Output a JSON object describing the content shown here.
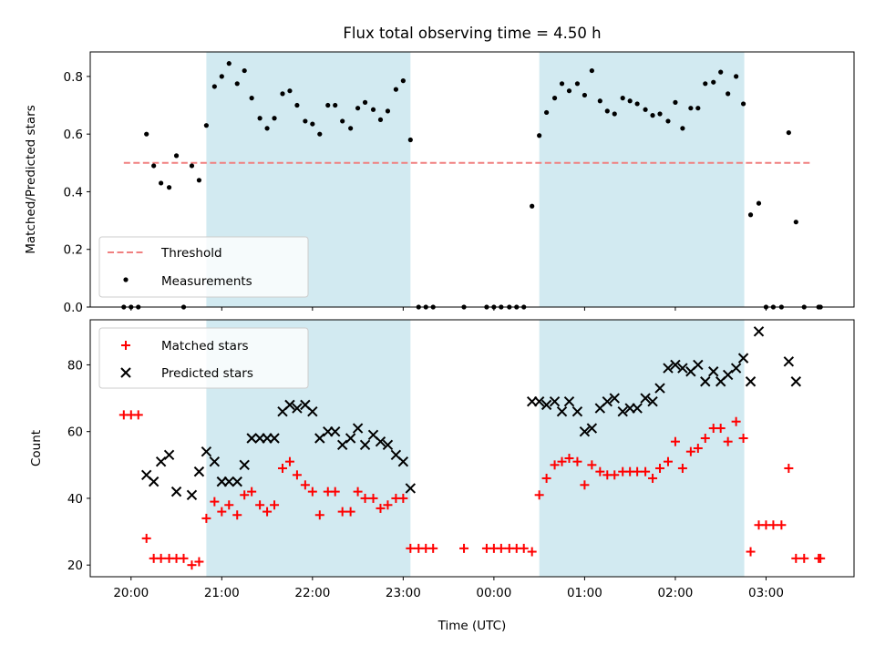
{
  "chart_data": [
    {
      "type": "scatter",
      "title": "Flux total observing time = 4.50 h",
      "ylabel": "Matched/Predicted stars",
      "xlabel": "",
      "ylim": [
        0,
        0.885
      ],
      "yticks": [
        "0.0",
        "0.2",
        "0.4",
        "0.6",
        "0.8"
      ],
      "ytick_values": [
        0,
        0.2,
        0.4,
        0.6,
        0.8
      ],
      "xlim": [
        -0.45,
        7.97
      ],
      "shaded_spans": [
        [
          0.83,
          3.08
        ],
        [
          4.5,
          6.76
        ]
      ],
      "shade_color": "#add8e6",
      "threshold": {
        "name": "Threshold",
        "value": 0.5,
        "x_range": [
          -0.08,
          7.5
        ],
        "color": "#f08080"
      },
      "legend": {
        "placement": "lower left",
        "entries": [
          "Threshold",
          "Measurements"
        ]
      },
      "series": [
        {
          "name": "Measurements",
          "color": "#000000",
          "points": [
            [
              -0.08,
              0
            ],
            [
              0,
              0
            ],
            [
              0.08,
              0
            ],
            [
              0.17,
              0.6
            ],
            [
              0.25,
              0.49
            ],
            [
              0.33,
              0.43
            ],
            [
              0.42,
              0.415
            ],
            [
              0.5,
              0.525
            ],
            [
              0.58,
              0.0
            ],
            [
              0.67,
              0.49
            ],
            [
              0.75,
              0.44
            ],
            [
              0.83,
              0.63
            ],
            [
              0.92,
              0.765
            ],
            [
              1,
              0.8
            ],
            [
              1.08,
              0.845
            ],
            [
              1.17,
              0.775
            ],
            [
              1.25,
              0.82
            ],
            [
              1.33,
              0.725
            ],
            [
              1.42,
              0.655
            ],
            [
              1.5,
              0.62
            ],
            [
              1.58,
              0.655
            ],
            [
              1.67,
              0.74
            ],
            [
              1.75,
              0.75
            ],
            [
              1.83,
              0.7
            ],
            [
              1.92,
              0.645
            ],
            [
              2,
              0.635
            ],
            [
              2.08,
              0.6
            ],
            [
              2.17,
              0.7
            ],
            [
              2.25,
              0.7
            ],
            [
              2.33,
              0.645
            ],
            [
              2.42,
              0.62
            ],
            [
              2.5,
              0.69
            ],
            [
              2.58,
              0.71
            ],
            [
              2.67,
              0.685
            ],
            [
              2.75,
              0.65
            ],
            [
              2.83,
              0.68
            ],
            [
              2.92,
              0.755
            ],
            [
              3,
              0.785
            ],
            [
              3.08,
              0.58
            ],
            [
              3.17,
              0
            ],
            [
              3.25,
              0
            ],
            [
              3.33,
              0
            ],
            [
              3.67,
              0
            ],
            [
              3.92,
              0
            ],
            [
              4,
              0
            ],
            [
              4.08,
              0
            ],
            [
              4.17,
              0
            ],
            [
              4.25,
              0
            ],
            [
              4.33,
              0
            ],
            [
              4.42,
              0.35
            ],
            [
              4.5,
              0.595
            ],
            [
              4.58,
              0.675
            ],
            [
              4.67,
              0.725
            ],
            [
              4.75,
              0.775
            ],
            [
              4.83,
              0.75
            ],
            [
              4.92,
              0.775
            ],
            [
              5,
              0.735
            ],
            [
              5.08,
              0.82
            ],
            [
              5.17,
              0.715
            ],
            [
              5.25,
              0.68
            ],
            [
              5.33,
              0.67
            ],
            [
              5.42,
              0.725
            ],
            [
              5.5,
              0.715
            ],
            [
              5.58,
              0.705
            ],
            [
              5.67,
              0.685
            ],
            [
              5.75,
              0.665
            ],
            [
              5.83,
              0.67
            ],
            [
              5.92,
              0.645
            ],
            [
              6,
              0.71
            ],
            [
              6.08,
              0.62
            ],
            [
              6.17,
              0.69
            ],
            [
              6.25,
              0.69
            ],
            [
              6.33,
              0.775
            ],
            [
              6.42,
              0.78
            ],
            [
              6.5,
              0.815
            ],
            [
              6.58,
              0.74
            ],
            [
              6.67,
              0.8
            ],
            [
              6.75,
              0.705
            ],
            [
              6.83,
              0.32
            ],
            [
              6.92,
              0.36
            ],
            [
              7,
              0
            ],
            [
              7.08,
              0
            ],
            [
              7.17,
              0
            ],
            [
              7.25,
              0.605
            ],
            [
              7.33,
              0.295
            ],
            [
              7.42,
              0
            ],
            [
              7.58,
              0
            ],
            [
              7.6,
              0
            ]
          ]
        }
      ]
    },
    {
      "type": "scatter",
      "title": "",
      "xlabel": "Time (UTC)",
      "ylabel": "Count",
      "ylim": [
        16.5,
        93.5
      ],
      "yticks": [
        "20",
        "40",
        "60",
        "80"
      ],
      "ytick_values": [
        20,
        40,
        60,
        80
      ],
      "xlim": [
        -0.45,
        7.97
      ],
      "xticks": [
        "20:00",
        "21:00",
        "22:00",
        "23:00",
        "00:00",
        "01:00",
        "02:00",
        "03:00"
      ],
      "xtick_values": [
        0,
        1,
        2,
        3,
        4,
        5,
        6,
        7
      ],
      "shaded_spans": [
        [
          0.83,
          3.08
        ],
        [
          4.5,
          6.76
        ]
      ],
      "shade_color": "#add8e6",
      "legend": {
        "placement": "upper left",
        "entries": [
          "Matched stars",
          "Predicted stars"
        ]
      },
      "series": [
        {
          "name": "Matched stars",
          "marker": "plus",
          "color": "#ff0000",
          "points": [
            [
              -0.08,
              65
            ],
            [
              0,
              65
            ],
            [
              0.08,
              65
            ],
            [
              0.17,
              28
            ],
            [
              0.25,
              22
            ],
            [
              0.33,
              22
            ],
            [
              0.42,
              22
            ],
            [
              0.5,
              22
            ],
            [
              0.58,
              22
            ],
            [
              0.67,
              20
            ],
            [
              0.75,
              21
            ],
            [
              0.83,
              34
            ],
            [
              0.92,
              39
            ],
            [
              1,
              36
            ],
            [
              1.08,
              38
            ],
            [
              1.17,
              35
            ],
            [
              1.25,
              41
            ],
            [
              1.33,
              42
            ],
            [
              1.42,
              38
            ],
            [
              1.5,
              36
            ],
            [
              1.58,
              38
            ],
            [
              1.67,
              49
            ],
            [
              1.75,
              51
            ],
            [
              1.83,
              47
            ],
            [
              1.92,
              44
            ],
            [
              2,
              42
            ],
            [
              2.08,
              35
            ],
            [
              2.17,
              42
            ],
            [
              2.25,
              42
            ],
            [
              2.33,
              36
            ],
            [
              2.42,
              36
            ],
            [
              2.5,
              42
            ],
            [
              2.58,
              40
            ],
            [
              2.67,
              40
            ],
            [
              2.75,
              37
            ],
            [
              2.83,
              38
            ],
            [
              2.92,
              40
            ],
            [
              3,
              40
            ],
            [
              3.08,
              25
            ],
            [
              3.17,
              25
            ],
            [
              3.25,
              25
            ],
            [
              3.33,
              25
            ],
            [
              3.67,
              25
            ],
            [
              3.92,
              25
            ],
            [
              4,
              25
            ],
            [
              4.08,
              25
            ],
            [
              4.17,
              25
            ],
            [
              4.25,
              25
            ],
            [
              4.33,
              25
            ],
            [
              4.42,
              24
            ],
            [
              4.5,
              41
            ],
            [
              4.58,
              46
            ],
            [
              4.67,
              50
            ],
            [
              4.75,
              51
            ],
            [
              4.83,
              52
            ],
            [
              4.92,
              51
            ],
            [
              5,
              44
            ],
            [
              5.08,
              50
            ],
            [
              5.17,
              48
            ],
            [
              5.25,
              47
            ],
            [
              5.33,
              47
            ],
            [
              5.42,
              48
            ],
            [
              5.5,
              48
            ],
            [
              5.58,
              48
            ],
            [
              5.67,
              48
            ],
            [
              5.75,
              46
            ],
            [
              5.83,
              49
            ],
            [
              5.92,
              51
            ],
            [
              6,
              57
            ],
            [
              6.08,
              49
            ],
            [
              6.17,
              54
            ],
            [
              6.25,
              55
            ],
            [
              6.33,
              58
            ],
            [
              6.42,
              61
            ],
            [
              6.5,
              61
            ],
            [
              6.58,
              57
            ],
            [
              6.67,
              63
            ],
            [
              6.75,
              58
            ],
            [
              6.83,
              24
            ],
            [
              6.92,
              32
            ],
            [
              7,
              32
            ],
            [
              7.08,
              32
            ],
            [
              7.17,
              32
            ],
            [
              7.25,
              49
            ],
            [
              7.33,
              22
            ],
            [
              7.42,
              22
            ],
            [
              7.58,
              22
            ],
            [
              7.6,
              22
            ]
          ]
        },
        {
          "name": "Predicted stars",
          "marker": "x",
          "color": "#000000",
          "points": [
            [
              0.17,
              47
            ],
            [
              0.25,
              45
            ],
            [
              0.33,
              51
            ],
            [
              0.42,
              53
            ],
            [
              0.5,
              42
            ],
            [
              0.67,
              41
            ],
            [
              0.75,
              48
            ],
            [
              0.83,
              54
            ],
            [
              0.92,
              51
            ],
            [
              1,
              45
            ],
            [
              1.08,
              45
            ],
            [
              1.17,
              45
            ],
            [
              1.25,
              50
            ],
            [
              1.33,
              58
            ],
            [
              1.42,
              58
            ],
            [
              1.5,
              58
            ],
            [
              1.58,
              58
            ],
            [
              1.67,
              66
            ],
            [
              1.75,
              68
            ],
            [
              1.83,
              67
            ],
            [
              1.92,
              68
            ],
            [
              2,
              66
            ],
            [
              2.08,
              58
            ],
            [
              2.17,
              60
            ],
            [
              2.25,
              60
            ],
            [
              2.33,
              56
            ],
            [
              2.42,
              58
            ],
            [
              2.5,
              61
            ],
            [
              2.58,
              56
            ],
            [
              2.67,
              59
            ],
            [
              2.75,
              57
            ],
            [
              2.83,
              56
            ],
            [
              2.92,
              53
            ],
            [
              3,
              51
            ],
            [
              3.08,
              43
            ],
            [
              4.42,
              69
            ],
            [
              4.5,
              69
            ],
            [
              4.58,
              68
            ],
            [
              4.67,
              69
            ],
            [
              4.75,
              66
            ],
            [
              4.83,
              69
            ],
            [
              4.92,
              66
            ],
            [
              5,
              60
            ],
            [
              5.08,
              61
            ],
            [
              5.17,
              67
            ],
            [
              5.25,
              69
            ],
            [
              5.33,
              70
            ],
            [
              5.42,
              66
            ],
            [
              5.5,
              67
            ],
            [
              5.58,
              67
            ],
            [
              5.67,
              70
            ],
            [
              5.75,
              69
            ],
            [
              5.83,
              73
            ],
            [
              5.92,
              79
            ],
            [
              6,
              80
            ],
            [
              6.08,
              79
            ],
            [
              6.17,
              78
            ],
            [
              6.25,
              80
            ],
            [
              6.33,
              75
            ],
            [
              6.42,
              78
            ],
            [
              6.5,
              75
            ],
            [
              6.58,
              77
            ],
            [
              6.67,
              79
            ],
            [
              6.75,
              82
            ],
            [
              6.83,
              75
            ],
            [
              6.92,
              90
            ],
            [
              7.25,
              81
            ],
            [
              7.33,
              75
            ]
          ]
        }
      ]
    }
  ]
}
